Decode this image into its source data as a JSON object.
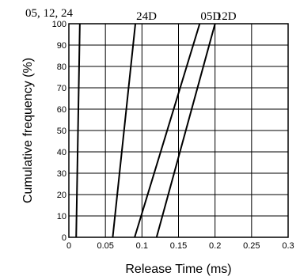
{
  "chart_data": {
    "type": "line",
    "title": "",
    "xlabel": "Release Time (ms)",
    "ylabel": "Cumulative frequency (%)",
    "xlim": [
      0,
      0.3
    ],
    "ylim": [
      0,
      100
    ],
    "xticks": [
      0,
      0.05,
      0.1,
      0.15,
      0.2,
      0.25,
      0.3
    ],
    "xtick_labels": [
      "0",
      "0.05",
      "0.1",
      "0.15",
      "0.2",
      "0.25",
      "0.3"
    ],
    "yticks": [
      0,
      10,
      20,
      30,
      40,
      50,
      60,
      70,
      80,
      90,
      100
    ],
    "ytick_labels": [
      "0",
      "10",
      "20",
      "30",
      "40",
      "50",
      "60",
      "70",
      "80",
      "90",
      "100"
    ],
    "grid": true,
    "series": [
      {
        "name": "05, 12, 24",
        "x": [
          0.01,
          0.015
        ],
        "y": [
          0,
          100
        ]
      },
      {
        "name": "24D",
        "x": [
          0.06,
          0.091
        ],
        "y": [
          0,
          100
        ]
      },
      {
        "name": "05D",
        "x": [
          0.09,
          0.179
        ],
        "y": [
          0,
          100
        ]
      },
      {
        "name": "12D",
        "x": [
          0.12,
          0.2
        ],
        "y": [
          0,
          100
        ]
      }
    ]
  }
}
